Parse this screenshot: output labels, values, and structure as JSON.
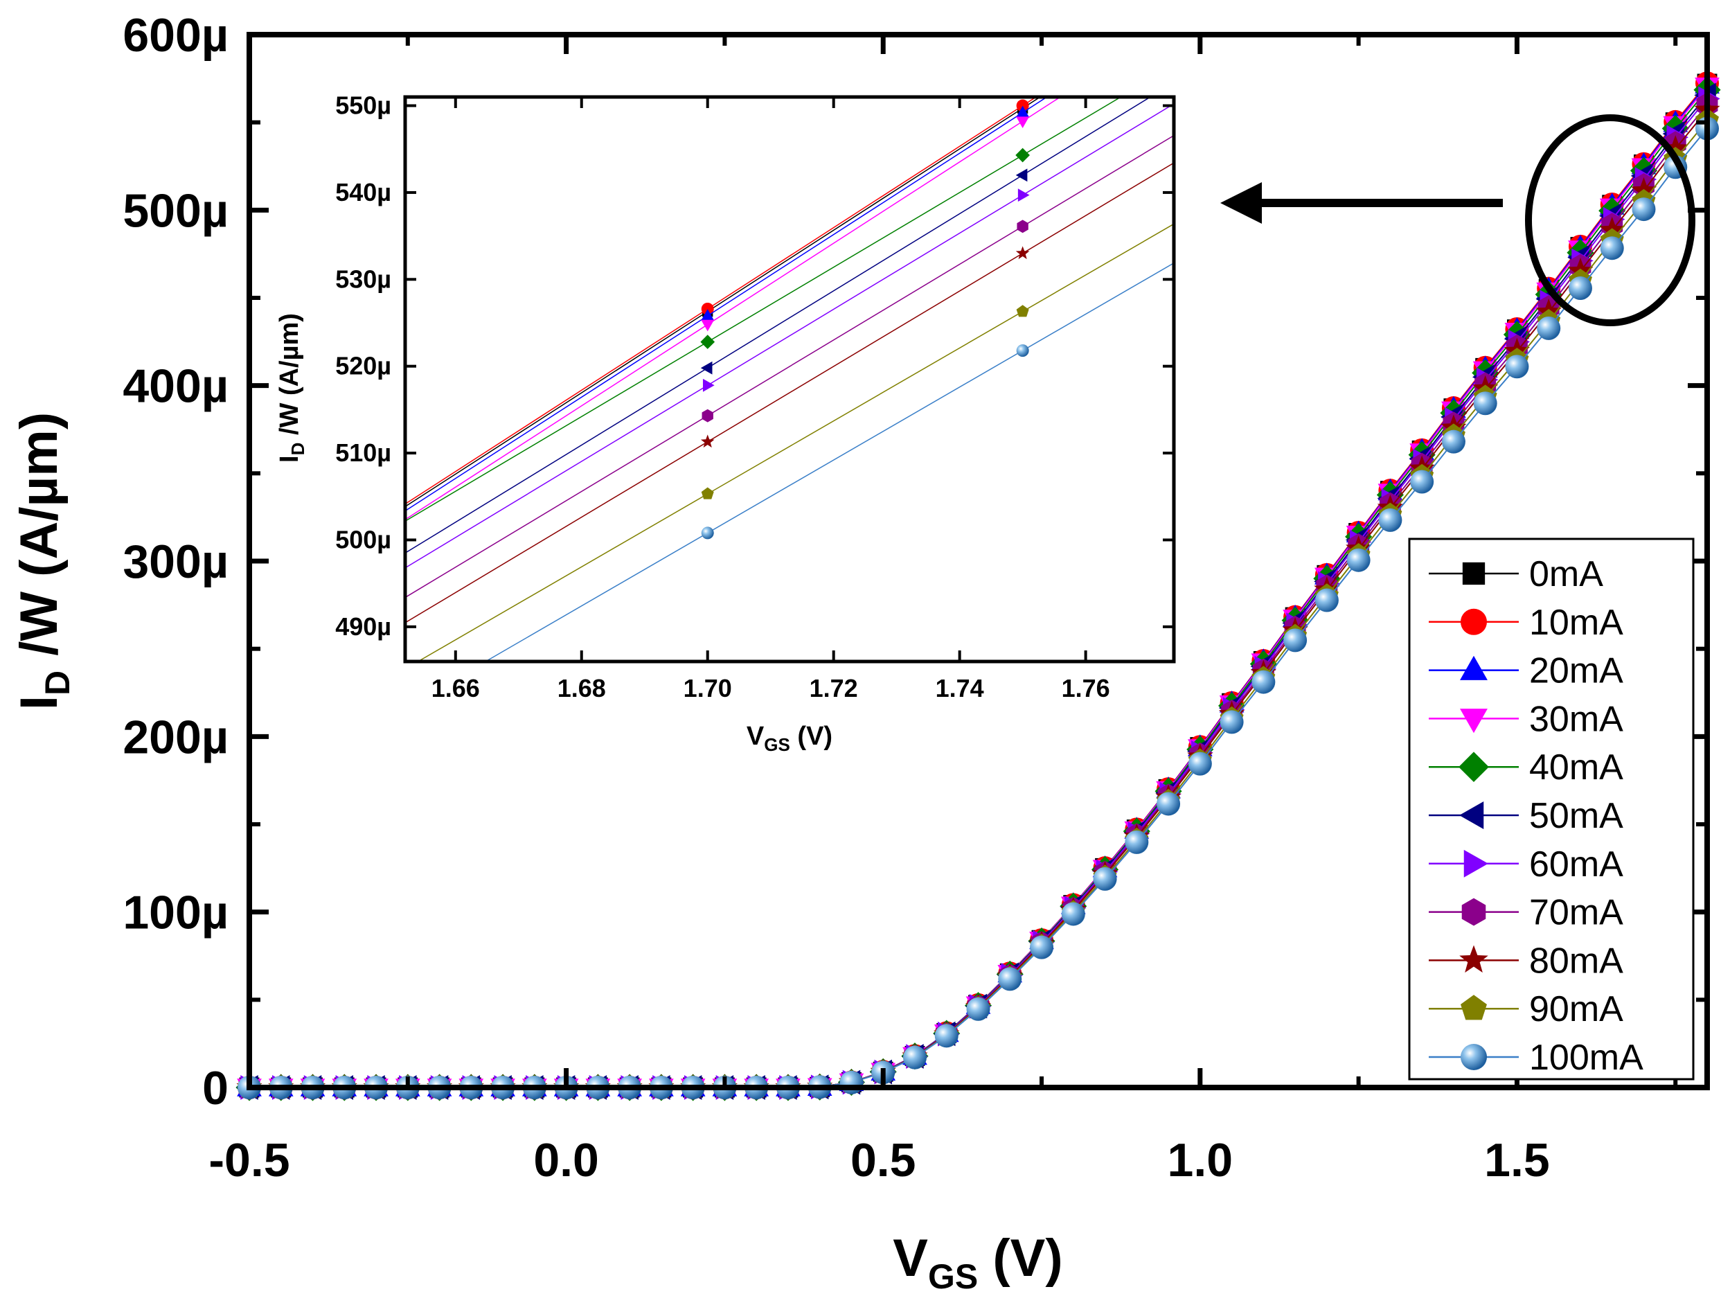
{
  "chart_data": [
    {
      "type": "line",
      "role": "main",
      "title": "",
      "xlabel": "V",
      "xlabel_sub": "GS",
      "xlabel_unit": " (V)",
      "ylabel": "I",
      "ylabel_sub": "D",
      "ylabel_unit": " /W (A/µm)",
      "xlim": [
        -0.5,
        1.8
      ],
      "ylim": [
        0,
        600
      ],
      "y_unit_suffix": "µ",
      "xticks": [
        "-0.5",
        "0.0",
        "0.5",
        "1.0",
        "1.5"
      ],
      "yticks": [
        "0",
        "100µ",
        "200µ",
        "300µ",
        "400µ",
        "500µ",
        "600µ"
      ],
      "grid": false,
      "legend_position": "bottom-right",
      "x": [
        -0.5,
        -0.45,
        -0.4,
        -0.35,
        -0.3,
        -0.25,
        -0.2,
        -0.15,
        -0.1,
        -0.05,
        0.0,
        0.05,
        0.1,
        0.15,
        0.2,
        0.25,
        0.3,
        0.35,
        0.4,
        0.45,
        0.5,
        0.55,
        0.6,
        0.65,
        0.7,
        0.75,
        0.8,
        0.85,
        0.9,
        0.95,
        1.0,
        1.05,
        1.1,
        1.15,
        1.2,
        1.25,
        1.3,
        1.35,
        1.4,
        1.45,
        1.5,
        1.55,
        1.6,
        1.65,
        1.7,
        1.75,
        1.8
      ],
      "reference_series_0mA": [
        0,
        0,
        0,
        0,
        0,
        0,
        0,
        0,
        0,
        0,
        0,
        0,
        0,
        0,
        0,
        0,
        0,
        0,
        0.3,
        3,
        9,
        18,
        31,
        47,
        65,
        84,
        104,
        125,
        147,
        170,
        194,
        219,
        243,
        268,
        292,
        316,
        340,
        363,
        387,
        410,
        432,
        455,
        479,
        503,
        526,
        550,
        572
      ],
      "series": [
        {
          "name": "0mA",
          "color": "#000000",
          "marker": "square",
          "offset": 0
        },
        {
          "name": "10mA",
          "color": "#ff0000",
          "marker": "circle",
          "offset": 0.3
        },
        {
          "name": "20mA",
          "color": "#0000ff",
          "marker": "triangle-up",
          "offset": -0.5
        },
        {
          "name": "30mA",
          "color": "#ff00ff",
          "marker": "triangle-down",
          "offset": -1.5
        },
        {
          "name": "40mA",
          "color": "#008000",
          "marker": "diamond",
          "offset": -3.5
        },
        {
          "name": "50mA",
          "color": "#000080",
          "marker": "triangle-left",
          "offset": -6.5
        },
        {
          "name": "60mA",
          "color": "#8000ff",
          "marker": "triangle-right",
          "offset": -8.5
        },
        {
          "name": "70mA",
          "color": "#8b008b",
          "marker": "hexagon",
          "offset": -12
        },
        {
          "name": "80mA",
          "color": "#8b0000",
          "marker": "star",
          "offset": -15
        },
        {
          "name": "90mA",
          "color": "#808000",
          "marker": "pentagon",
          "offset": -21
        },
        {
          "name": "100mA",
          "color": "#3a7fc8",
          "marker": "sphere",
          "offset": -25.5
        }
      ]
    },
    {
      "type": "line",
      "role": "inset",
      "title": "",
      "xlabel": "V",
      "xlabel_sub": "GS",
      "xlabel_unit": " (V)",
      "ylabel": "I",
      "ylabel_sub": "D",
      "ylabel_unit": " /W (A/µm)",
      "xlim": [
        1.652,
        1.774
      ],
      "ylim": [
        486,
        551
      ],
      "xticks": [
        1.66,
        1.68,
        1.7,
        1.72,
        1.74,
        1.76
      ],
      "xtick_labels": [
        "1.66",
        "1.68",
        "1.70",
        "1.72",
        "1.74",
        "1.76"
      ],
      "yticks": [
        490,
        500,
        510,
        520,
        530,
        540,
        550
      ],
      "ytick_labels": [
        "490µ",
        "500µ",
        "510µ",
        "520µ",
        "530µ",
        "540µ",
        "550µ"
      ],
      "x": [
        1.7,
        1.75
      ],
      "series": [
        {
          "name": "0mA",
          "values": [
            526.3,
            549.7
          ]
        },
        {
          "name": "10mA",
          "values": [
            526.6,
            550.0
          ]
        },
        {
          "name": "20mA",
          "values": [
            525.8,
            549.2
          ]
        },
        {
          "name": "30mA",
          "values": [
            524.8,
            548.2
          ]
        },
        {
          "name": "40mA",
          "values": [
            522.8,
            544.3
          ]
        },
        {
          "name": "50mA",
          "values": [
            519.8,
            542.0
          ]
        },
        {
          "name": "60mA",
          "values": [
            517.8,
            539.7
          ]
        },
        {
          "name": "70mA",
          "values": [
            514.3,
            536.1
          ]
        },
        {
          "name": "80mA",
          "values": [
            511.3,
            533.0
          ]
        },
        {
          "name": "90mA",
          "values": [
            505.3,
            526.3
          ]
        },
        {
          "name": "100mA",
          "values": [
            500.8,
            521.8
          ]
        }
      ]
    }
  ],
  "annotations": {
    "ellipse": {
      "description": "zoom region highlight",
      "color": "#000000"
    },
    "arrow": {
      "direction": "left",
      "color": "#000000"
    }
  }
}
